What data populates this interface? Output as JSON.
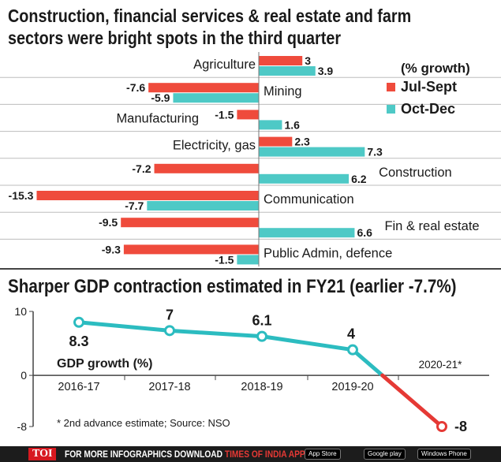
{
  "chart_data": [
    {
      "type": "bar",
      "orientation": "horizontal",
      "title": "Construction, financial services & real estate and farm sectors were bright spots in the third quarter",
      "legend_title": "(% growth)",
      "legend_position": "top-right",
      "categories": [
        "Agriculture",
        "Mining",
        "Manufacturing",
        "Electricity, gas",
        "Construction",
        "Communication",
        "Fin & real estate",
        "Public Admin, defence"
      ],
      "series": [
        {
          "name": "Jul-Sept",
          "color": "#ef4b3c",
          "values": [
            3,
            -7.6,
            -1.5,
            2.3,
            -7.2,
            -15.3,
            -9.5,
            -9.3
          ]
        },
        {
          "name": "Oct-Dec",
          "color": "#4ec9c6",
          "values": [
            3.9,
            -5.9,
            1.6,
            7.3,
            6.2,
            -7.7,
            6.6,
            -1.5
          ]
        }
      ],
      "grid": true
    },
    {
      "type": "line",
      "title": "Sharper GDP contraction estimated in FY21 (earlier -7.7%)",
      "series_label": "GDP growth (%)",
      "x": [
        "2016-17",
        "2017-18",
        "2018-19",
        "2019-20",
        "2020-21*"
      ],
      "values": [
        8.3,
        7,
        6.1,
        4,
        -8
      ],
      "yticks": [
        10,
        0,
        -8
      ],
      "ylim": [
        -8,
        10
      ],
      "line_color": "#2cbcc0",
      "highlight_color": "#e53935",
      "footnote": "* 2nd advance estimate; Source: NSO"
    }
  ],
  "footer": {
    "logo": "TOI",
    "text": "FOR MORE  INFOGRAPHICS DOWNLOAD",
    "app_name": "TIMES OF INDIA APP",
    "stores": [
      "App Store",
      "Google play",
      "Windows Phone"
    ]
  }
}
